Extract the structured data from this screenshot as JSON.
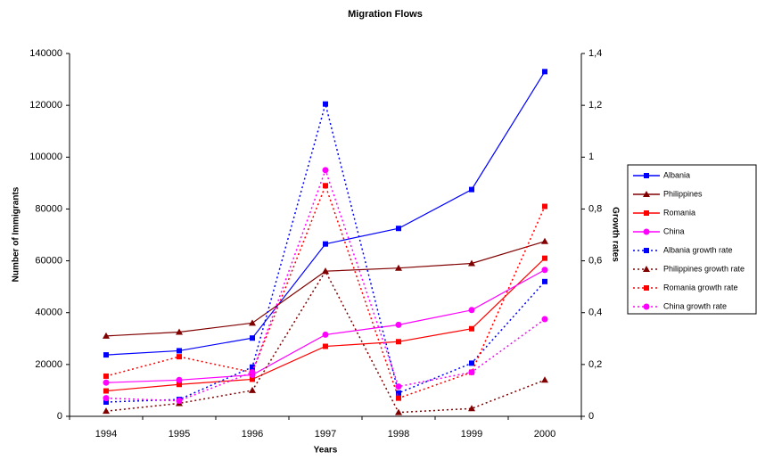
{
  "chart_data": {
    "type": "line",
    "title": "Migration Flows",
    "x_label": "Years",
    "y_label": "Number of Immigrants",
    "y2_label": "Growth rates",
    "categories": [
      "1994",
      "1995",
      "1996",
      "1997",
      "1998",
      "1999",
      "2000"
    ],
    "ylim": [
      0,
      140000
    ],
    "yticks": [
      0,
      20000,
      40000,
      60000,
      80000,
      100000,
      120000,
      140000
    ],
    "y2lim": [
      0,
      1.4
    ],
    "y2ticks": [
      0,
      {
        "value": 0.2,
        "label": "0,2"
      },
      {
        "value": 0.4,
        "label": "0,4"
      },
      {
        "value": 0.6,
        "label": "0,6"
      },
      {
        "value": 0.8,
        "label": "0,8"
      },
      1,
      {
        "value": 1.2,
        "label": "1,2"
      },
      {
        "value": 1.4,
        "label": "1,4"
      }
    ],
    "grid": false,
    "legend": "right",
    "series": [
      {
        "name": "Albania",
        "color": "#0000ff",
        "marker": "square",
        "style": "solid",
        "values": [
          23700,
          25300,
          30200,
          66500,
          72500,
          87500,
          133000
        ]
      },
      {
        "name": "Philippines",
        "color": "#800000",
        "marker": "triangle",
        "style": "solid",
        "values": [
          31000,
          32500,
          36000,
          56000,
          57200,
          59000,
          67500
        ]
      },
      {
        "name": "Romania",
        "color": "#ff0000",
        "marker": "square",
        "style": "solid",
        "values": [
          9800,
          12300,
          14300,
          27000,
          28800,
          33800,
          61000
        ]
      },
      {
        "name": "China",
        "color": "#ff00ff",
        "marker": "circle",
        "style": "solid",
        "values": [
          13000,
          14000,
          16000,
          31500,
          35300,
          41000,
          56500
        ]
      },
      {
        "name": "Albania growth rate",
        "color": "#0000ff",
        "marker": "square",
        "style": "dotted",
        "axis": "y2",
        "values": [
          0.055,
          0.065,
          0.19,
          1.205,
          0.09,
          0.205,
          0.52
        ]
      },
      {
        "name": "Philippines growth rate",
        "color": "#800000",
        "marker": "triangle",
        "style": "dotted",
        "axis": "y2",
        "values": [
          0.02,
          0.05,
          0.1,
          0.56,
          0.015,
          0.03,
          0.14
        ]
      },
      {
        "name": "Romania growth rate",
        "color": "#ff0000",
        "marker": "square",
        "style": "dotted",
        "axis": "y2",
        "values": [
          0.155,
          0.23,
          0.17,
          0.89,
          0.07,
          0.17,
          0.81
        ]
      },
      {
        "name": "China growth rate",
        "color": "#ff00ff",
        "marker": "circle",
        "style": "dotted",
        "axis": "y2",
        "values": [
          0.07,
          0.06,
          0.17,
          0.95,
          0.115,
          0.17,
          0.375
        ]
      }
    ]
  }
}
